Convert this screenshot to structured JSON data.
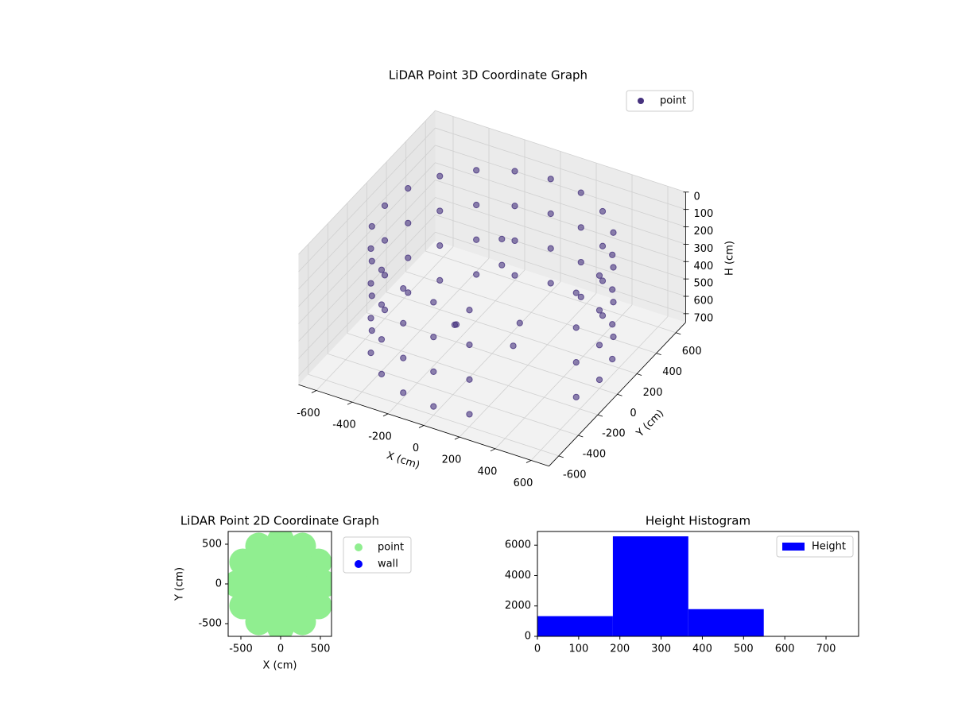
{
  "chart_data": [
    {
      "type": "scatter3d",
      "title": "LiDAR Point 3D Coordinate Graph",
      "xlabel": "X (cm)",
      "ylabel": "Y (cm)",
      "zlabel": "H (cm)",
      "xlim": [
        -700,
        700
      ],
      "ylim": [
        -700,
        700
      ],
      "zlim": [
        0,
        750
      ],
      "z_inverted": true,
      "xticks": [
        -600,
        -400,
        -200,
        0,
        200,
        400,
        600
      ],
      "yticks": [
        -600,
        -400,
        -200,
        0,
        200,
        400,
        600
      ],
      "zticks": [
        0,
        100,
        200,
        300,
        400,
        500,
        600,
        700
      ],
      "grid": true,
      "legend": "upper right",
      "series": [
        {
          "name": "point",
          "color": "#46327e",
          "x": [
            600,
            571,
            485,
            353,
            185,
            0,
            -185,
            -353,
            -485,
            -571,
            -600,
            -571,
            -485,
            -353,
            -185,
            0,
            185,
            571,
            600,
            571,
            485,
            353,
            185,
            0,
            -185,
            -353,
            -485,
            -571,
            -600,
            -571,
            -485,
            -353,
            -185,
            0,
            185,
            571,
            600,
            571,
            485,
            353,
            185,
            0,
            -185,
            -353,
            -485,
            -571,
            -600,
            -571,
            -485,
            -353,
            -185,
            0,
            185,
            571,
            600,
            571,
            485,
            353,
            185,
            0,
            -185,
            -353,
            -485,
            -571,
            -600,
            -571,
            -485,
            -353,
            -185,
            0,
            185,
            571,
            0,
            0,
            100,
            -200,
            200,
            -100
          ],
          "y": [
            0,
            185,
            353,
            485,
            571,
            600,
            571,
            485,
            353,
            185,
            0,
            -185,
            -353,
            -485,
            -571,
            -600,
            -571,
            -185,
            0,
            185,
            353,
            485,
            571,
            600,
            571,
            485,
            353,
            185,
            0,
            -185,
            -353,
            -485,
            -571,
            -600,
            -571,
            -185,
            0,
            185,
            353,
            485,
            571,
            600,
            571,
            485,
            353,
            185,
            0,
            -185,
            -353,
            -485,
            -571,
            -600,
            -571,
            -185,
            0,
            185,
            353,
            485,
            571,
            600,
            571,
            485,
            353,
            185,
            0,
            -185,
            -353,
            -485,
            -571,
            -600,
            -571,
            -185,
            100,
            100,
            100,
            0,
            -150,
            -200
          ],
          "z": [
            100,
            100,
            100,
            100,
            100,
            100,
            100,
            100,
            100,
            100,
            100,
            100,
            100,
            100,
            100,
            100,
            100,
            100,
            300,
            300,
            300,
            300,
            300,
            300,
            300,
            300,
            300,
            300,
            300,
            300,
            300,
            300,
            300,
            300,
            300,
            300,
            500,
            500,
            500,
            500,
            500,
            500,
            500,
            500,
            500,
            500,
            500,
            500,
            500,
            500,
            500,
            500,
            500,
            500,
            700,
            700,
            700,
            700,
            700,
            700,
            700,
            700,
            700,
            700,
            700,
            700,
            700,
            700,
            700,
            700,
            700,
            700,
            150,
            300,
            600,
            650,
            550,
            500
          ]
        }
      ]
    },
    {
      "type": "scatter",
      "title": "LiDAR Point 2D Coordinate Graph",
      "xlabel": "X (cm)",
      "ylabel": "Y (cm)",
      "xlim": [
        -660,
        640
      ],
      "ylim": [
        -660,
        660
      ],
      "xticks": [
        -500,
        0,
        500
      ],
      "yticks": [
        -500,
        0,
        500
      ],
      "legend": "outside right",
      "series": [
        {
          "name": "point",
          "color": "#90ee90",
          "x": [
            550,
            476,
            275,
            0,
            -275,
            -476,
            -550,
            -476,
            -275,
            0,
            275,
            476,
            350,
            247,
            0,
            -247,
            -350,
            -247,
            0,
            247,
            150,
            0,
            -150,
            0,
            0
          ],
          "y": [
            0,
            275,
            476,
            550,
            476,
            275,
            0,
            -275,
            -476,
            -550,
            -476,
            -275,
            0,
            247,
            350,
            247,
            0,
            -247,
            -350,
            -247,
            0,
            150,
            0,
            -150,
            0
          ]
        },
        {
          "name": "wall",
          "color": "#0000ff",
          "x": [],
          "y": []
        }
      ]
    },
    {
      "type": "histogram",
      "title": "Height Histogram",
      "bins": [
        0,
        183,
        366,
        549,
        732
      ],
      "values": [
        1330,
        6580,
        1790,
        10
      ],
      "xlim": [
        0,
        779
      ],
      "ylim": [
        0,
        6900
      ],
      "xticks": [
        0,
        100,
        200,
        300,
        400,
        500,
        600,
        700
      ],
      "yticks": [
        0,
        2000,
        4000,
        6000
      ],
      "series_name": "Height",
      "color": "#0000ff",
      "legend": "upper right"
    }
  ]
}
